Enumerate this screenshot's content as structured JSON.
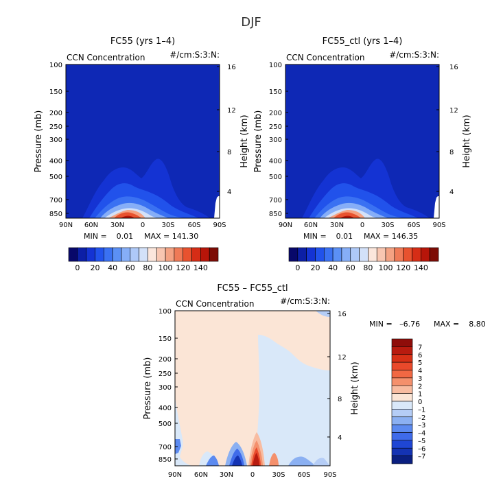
{
  "figure": {
    "title": "DJF"
  },
  "panels": [
    {
      "title": "FC55 (yrs 1–4)",
      "left_label": "CCN Concentration",
      "right_label": "#/cm:S:3:N:",
      "ylabel": "Pressure (mb)",
      "right_ylabel": "Height (km)",
      "min_text": "MIN =    0.01",
      "max_text": "MAX = 141.30"
    },
    {
      "title": "FC55_ctl (yrs 1–4)",
      "left_label": "CCN Concentration",
      "right_label": "#/cm:S:3:N:",
      "ylabel": "Pressure (mb)",
      "right_ylabel": "Height (km)",
      "min_text": "MIN =    0.01",
      "max_text": "MAX = 146.35"
    },
    {
      "title": "FC55 – FC55_ctl",
      "left_label": "CCN Concentration",
      "right_label": "#/cm:S:3:N:",
      "ylabel": "Pressure (mb)",
      "right_ylabel": "Height (km)",
      "min_text": "MIN =   –6.76",
      "max_text": "MAX =    8.80"
    }
  ],
  "axes": {
    "x_ticks": [
      "90N",
      "60N",
      "30N",
      "0",
      "30S",
      "60S",
      "90S"
    ],
    "pressure_ticks": [
      "100",
      "150",
      "200",
      "250",
      "300",
      "400",
      "500",
      "700",
      "850"
    ],
    "height_ticks": [
      "16",
      "12",
      "8",
      "4"
    ]
  },
  "colorbars": {
    "absolute": {
      "labels": [
        "0",
        "20",
        "40",
        "60",
        "80",
        "100",
        "120",
        "140"
      ],
      "colors": [
        "#08086a",
        "#0c1fa6",
        "#1433d3",
        "#2152eb",
        "#3a71f2",
        "#5b90f5",
        "#86aef7",
        "#aec9f8",
        "#d3e1f9",
        "#fbe6dc",
        "#f8c6b1",
        "#f4a283",
        "#ef7a57",
        "#e8522f",
        "#d62d16",
        "#b71509",
        "#7d0c05"
      ]
    },
    "difference": {
      "labels": [
        "7",
        "6",
        "5",
        "4",
        "3",
        "2",
        "1",
        "0",
        "–1",
        "–2",
        "–3",
        "–4",
        "–5",
        "–6",
        "–7"
      ],
      "colors": [
        "#8f0d0a",
        "#b81b0f",
        "#d73016",
        "#e9492b",
        "#f16843",
        "#f4906c",
        "#f8bca1",
        "#fbe5d6",
        "#d9e8f9",
        "#b5cdf6",
        "#8bb0f2",
        "#5c8af0",
        "#3f6bea",
        "#1f46d4",
        "#1433b3",
        "#0a1f80"
      ]
    }
  }
}
